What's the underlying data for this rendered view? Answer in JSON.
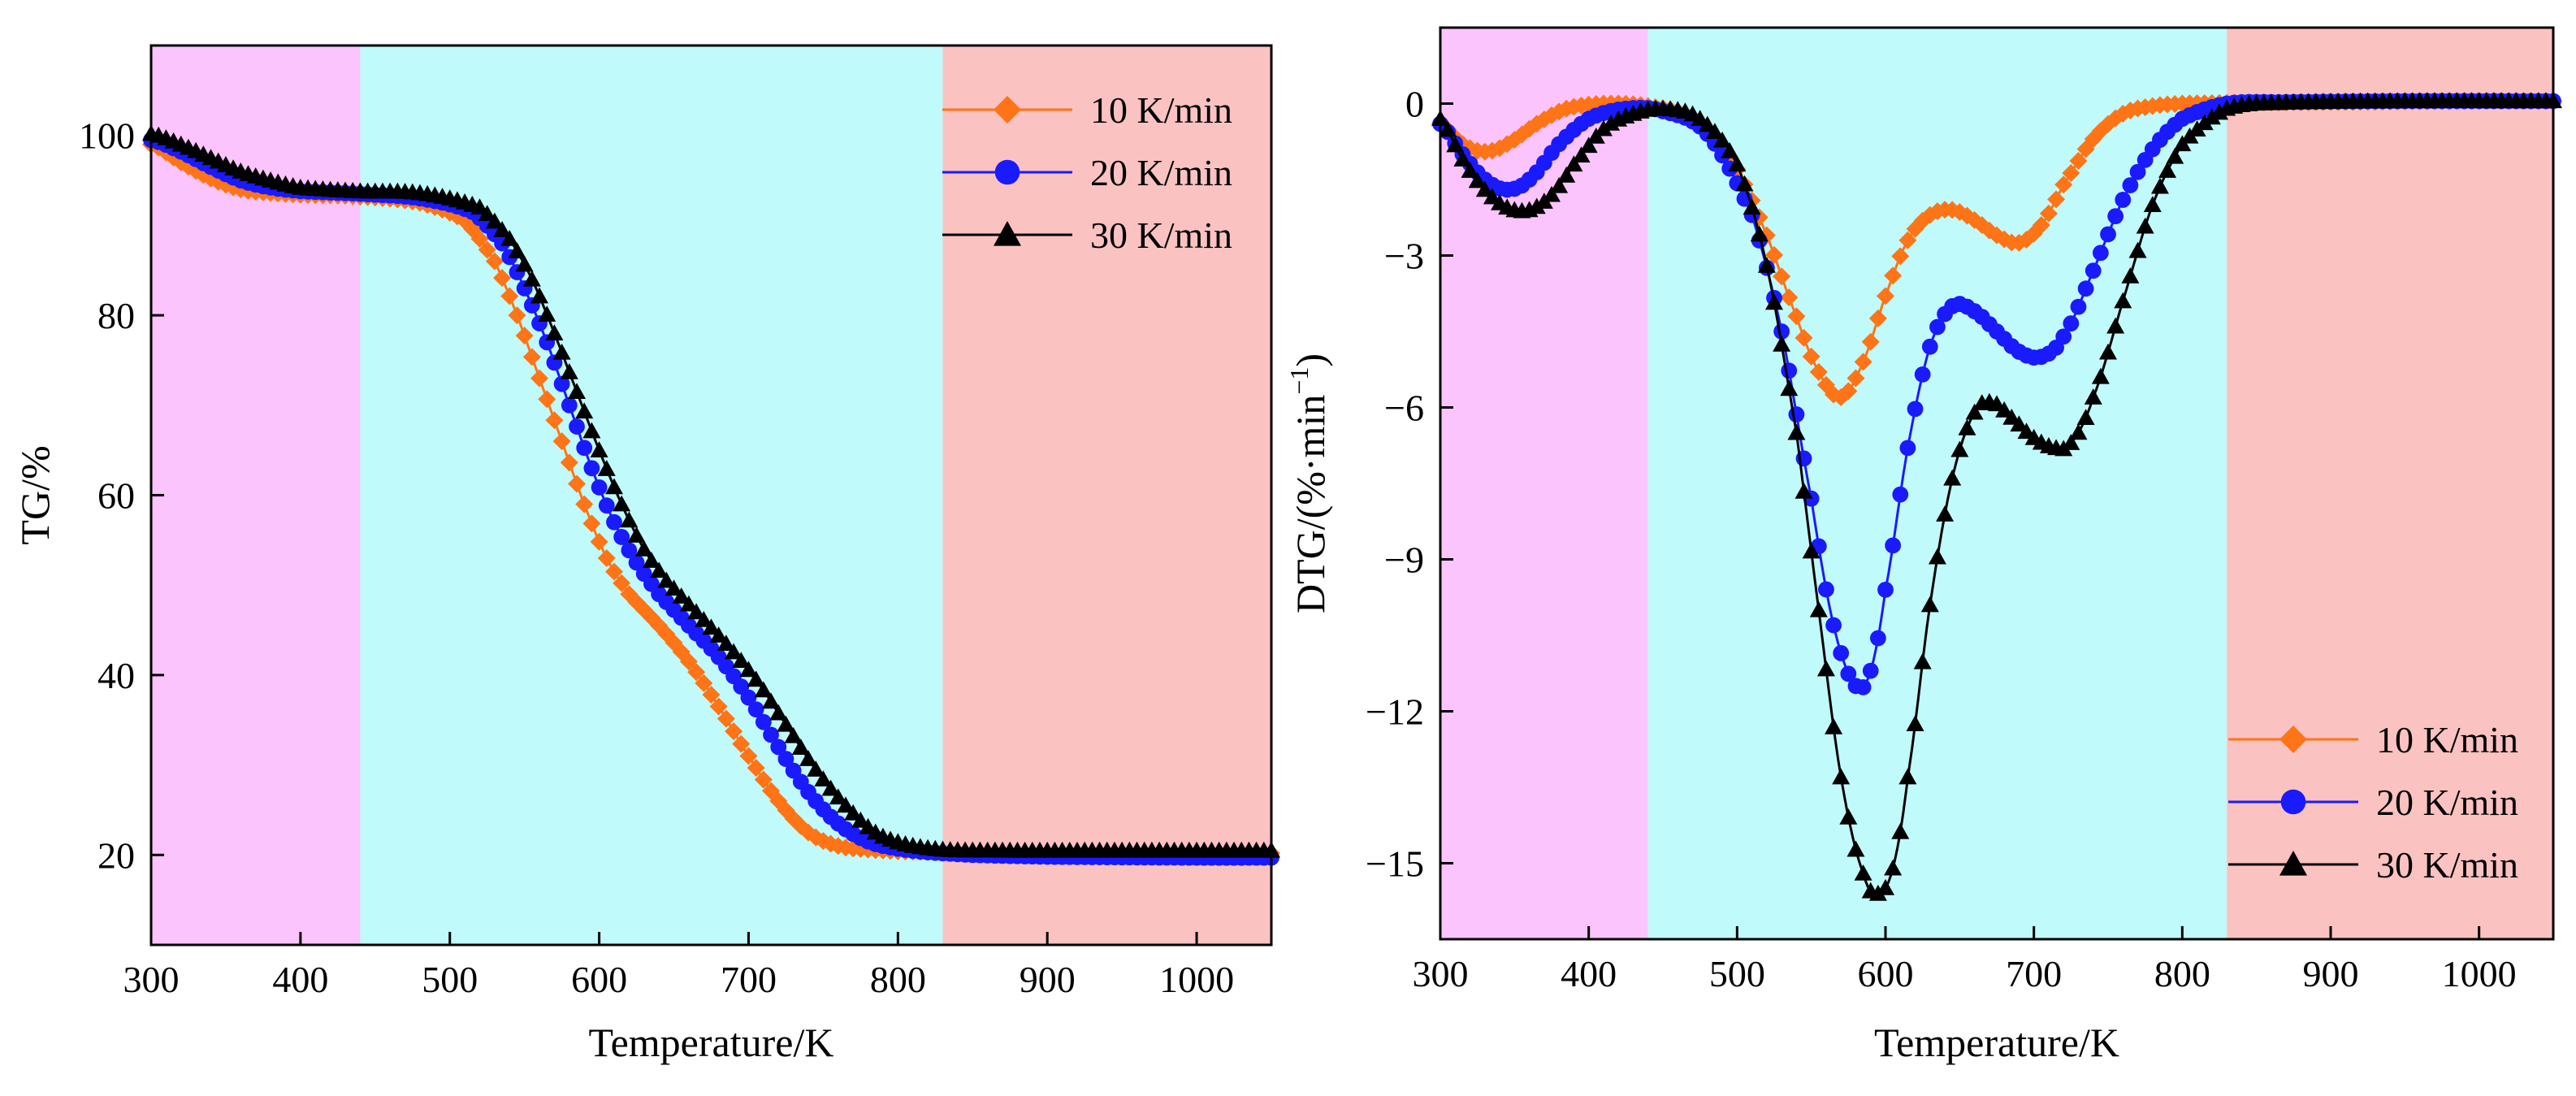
{
  "chart_data": [
    {
      "type": "line",
      "id": "tg",
      "title": "",
      "xlabel": "Temperature/K",
      "ylabel": "TG/%",
      "xlim": [
        300,
        1050
      ],
      "ylim": [
        10,
        110
      ],
      "xticks": [
        300,
        400,
        500,
        600,
        700,
        800,
        900,
        1000
      ],
      "yticks": [
        20,
        40,
        60,
        80,
        100
      ],
      "ytick_labels": [
        "20",
        "40",
        "60",
        "80",
        "100"
      ],
      "regions": [
        {
          "from": 300,
          "to": 440,
          "color": "#fcc4fc"
        },
        {
          "from": 440,
          "to": 830,
          "color": "#c1fafb"
        },
        {
          "from": 830,
          "to": 1050,
          "color": "#fbc2c2"
        }
      ],
      "legend_position": "top-right",
      "series": [
        {
          "name": "10 K/min",
          "color": "#ff7416",
          "marker": "diamond",
          "x": [
            300,
            320,
            340,
            360,
            380,
            400,
            440,
            480,
            510,
            530,
            545,
            560,
            575,
            590,
            605,
            620,
            640,
            660,
            680,
            700,
            720,
            740,
            760,
            780,
            800,
            850,
            900,
            1000,
            1050
          ],
          "y": [
            99,
            97,
            95.2,
            94,
            93.6,
            93.4,
            93.2,
            92.5,
            90.5,
            86,
            80,
            73,
            66,
            59,
            53,
            49,
            45.5,
            41.5,
            36.5,
            31,
            26,
            22.5,
            21,
            20.6,
            20.4,
            20.2,
            20.2,
            20.2,
            20.2
          ]
        },
        {
          "name": "20 K/min",
          "color": "#1a1aff",
          "marker": "circle",
          "x": [
            300,
            320,
            340,
            360,
            380,
            400,
            440,
            480,
            515,
            535,
            550,
            565,
            580,
            595,
            610,
            625,
            640,
            660,
            680,
            700,
            720,
            740,
            760,
            780,
            800,
            820,
            850,
            900,
            1000,
            1050
          ],
          "y": [
            99.5,
            98.2,
            96.5,
            95,
            94.2,
            93.8,
            93.5,
            93,
            91.5,
            88,
            83,
            77,
            70,
            63,
            57,
            52.5,
            49,
            45.5,
            42,
            37.5,
            32,
            27,
            23.5,
            21.5,
            20.7,
            20.3,
            20,
            19.8,
            19.7,
            19.7
          ]
        },
        {
          "name": "30 K/min",
          "color": "#000000",
          "marker": "triangle",
          "x": [
            300,
            320,
            340,
            360,
            380,
            400,
            440,
            480,
            520,
            540,
            555,
            570,
            585,
            600,
            615,
            630,
            645,
            665,
            685,
            705,
            725,
            745,
            765,
            785,
            805,
            830,
            870,
            950,
            1050
          ],
          "y": [
            100.2,
            99,
            97.5,
            96,
            95,
            94.2,
            93.8,
            93.6,
            92,
            88.5,
            84,
            78,
            71.5,
            65,
            59,
            54,
            50.5,
            47,
            43.5,
            39.5,
            34.5,
            29.5,
            25.5,
            22.5,
            21.2,
            20.6,
            20.5,
            20.5,
            20.5
          ]
        }
      ]
    },
    {
      "type": "line",
      "id": "dtg",
      "title": "",
      "xlabel": "Temperature/K",
      "ylabel": "DTG/(%·min",
      "ylabel_sup": "−1",
      "ylabel_close": ")",
      "xlim": [
        300,
        1050
      ],
      "ylim": [
        -16.5,
        1.5
      ],
      "xticks": [
        300,
        400,
        500,
        600,
        700,
        800,
        900,
        1000
      ],
      "yticks": [
        0,
        -3,
        -6,
        -9,
        -12,
        -15
      ],
      "ytick_labels": [
        "0",
        "−3",
        "−6",
        "−9",
        "−12",
        "−15"
      ],
      "regions": [
        {
          "from": 300,
          "to": 440,
          "color": "#fcc4fc"
        },
        {
          "from": 440,
          "to": 830,
          "color": "#c1fafb"
        },
        {
          "from": 830,
          "to": 1050,
          "color": "#fbc2c2"
        }
      ],
      "legend_position": "bottom-right",
      "series": [
        {
          "name": "10 K/min",
          "color": "#ff7416",
          "marker": "diamond",
          "x": [
            300,
            315,
            330,
            345,
            365,
            385,
            410,
            440,
            470,
            500,
            520,
            540,
            555,
            570,
            585,
            600,
            615,
            630,
            645,
            660,
            675,
            690,
            705,
            720,
            740,
            760,
            780,
            800,
            850,
            900,
            1000,
            1050
          ],
          "y": [
            -0.4,
            -0.8,
            -0.95,
            -0.8,
            -0.4,
            -0.1,
            0,
            -0.05,
            -0.3,
            -1.3,
            -2.6,
            -4.2,
            -5.3,
            -5.8,
            -5.1,
            -3.8,
            -2.7,
            -2.2,
            -2.1,
            -2.3,
            -2.6,
            -2.75,
            -2.4,
            -1.6,
            -0.7,
            -0.2,
            -0.05,
            0,
            0.02,
            0.03,
            0.05,
            0.05
          ]
        },
        {
          "name": "20 K/min",
          "color": "#1a1aff",
          "marker": "circle",
          "x": [
            300,
            315,
            330,
            345,
            360,
            380,
            400,
            425,
            450,
            480,
            510,
            530,
            550,
            565,
            580,
            590,
            600,
            615,
            630,
            645,
            660,
            675,
            690,
            705,
            720,
            740,
            760,
            780,
            800,
            830,
            870,
            950,
            1050
          ],
          "y": [
            -0.4,
            -1.0,
            -1.5,
            -1.7,
            -1.5,
            -0.8,
            -0.3,
            -0.1,
            -0.15,
            -0.6,
            -2.2,
            -4.5,
            -7.8,
            -10.3,
            -11.5,
            -11.2,
            -9.6,
            -6.8,
            -4.8,
            -4.0,
            -4.1,
            -4.5,
            -4.9,
            -5.0,
            -4.6,
            -3.3,
            -1.9,
            -0.9,
            -0.3,
            0,
            0.03,
            0.05,
            0.05
          ]
        },
        {
          "name": "30 K/min",
          "color": "#000000",
          "marker": "triangle",
          "x": [
            300,
            315,
            330,
            345,
            360,
            375,
            390,
            410,
            430,
            450,
            475,
            500,
            520,
            540,
            555,
            570,
            585,
            595,
            605,
            615,
            630,
            645,
            660,
            672,
            685,
            700,
            715,
            725,
            740,
            760,
            780,
            800,
            830,
            870,
            950,
            1050
          ],
          "y": [
            -0.3,
            -1.1,
            -1.7,
            -2.05,
            -2.1,
            -1.8,
            -1.2,
            -0.5,
            -0.2,
            -0.1,
            -0.3,
            -1.2,
            -3.2,
            -6.5,
            -10.0,
            -13.3,
            -15.2,
            -15.6,
            -15.1,
            -13.3,
            -9.9,
            -7.4,
            -6.1,
            -5.9,
            -6.2,
            -6.6,
            -6.8,
            -6.7,
            -5.8,
            -3.9,
            -2.0,
            -0.8,
            -0.1,
            0.02,
            0.05,
            0.05
          ]
        }
      ]
    }
  ]
}
